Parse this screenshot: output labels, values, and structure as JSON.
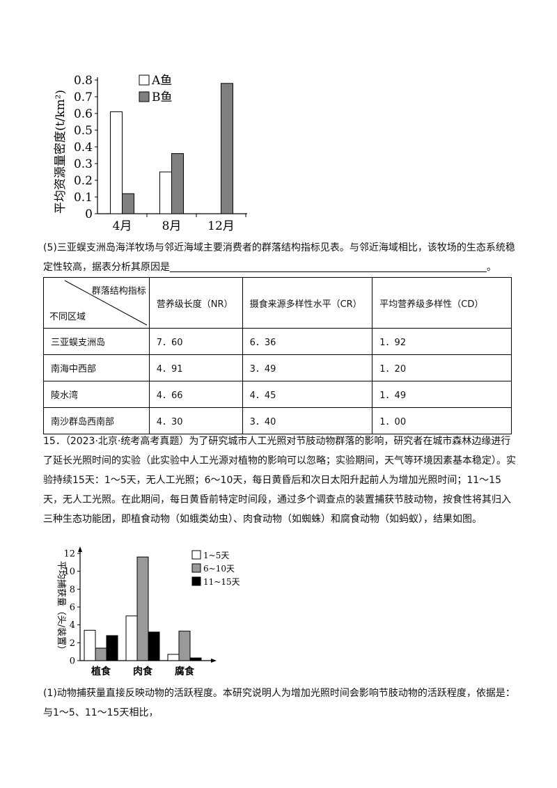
{
  "chart1": {
    "chart_data": {
      "type": "bar",
      "categories": [
        "4月",
        "8月",
        "12月"
      ],
      "series": [
        {
          "name": "A鱼",
          "values": [
            0.61,
            0.25,
            0
          ]
        },
        {
          "name": "B鱼",
          "values": [
            0.12,
            0.36,
            0.78
          ]
        }
      ],
      "ylabel": "平均资源量密度(t/km²)",
      "ylim": [
        0,
        0.8
      ],
      "yticks": [
        "0",
        "0.1",
        "0.2",
        "0.3",
        "0.4",
        "0.5",
        "0.6",
        "0.7",
        "0.8"
      ],
      "legend": "top-left",
      "grid": false
    },
    "colors": {
      "A鱼": "#ffffff",
      "B鱼": "#808080"
    }
  },
  "q5": {
    "text": "(5)三亚蜈支洲岛海洋牧场与邻近海域主要消费者的群落结构指标见表。与邻近海域相比，该牧场的生态系统稳定性较高，据表分析其原因是",
    "end": "。"
  },
  "table": {
    "corner_top": "群落结构指标",
    "corner_bottom": "不同区域",
    "headers": [
      "营养级长度（NR）",
      "摄食来源多样性水平（CR）",
      "平均营养级多样性（CD）"
    ],
    "rows": [
      [
        "三亚蜈支洲岛",
        "7．60",
        "6．36",
        "1．92"
      ],
      [
        "南海中西部",
        "4．91",
        "3．49",
        "1．20"
      ],
      [
        "陵水湾",
        "4．66",
        "4．45",
        "1．49"
      ],
      [
        "南沙群岛西南部",
        "4．30",
        "3．40",
        "1．00"
      ]
    ]
  },
  "q15": {
    "text": "15．（2023·北京·统考高考真题）为了研究城市人工光照对节肢动物群落的影响，研究者在城市森林边缘进行了延长光照时间的实验（此实验中人工光源对植物的影响可以忽略；实验期间，天气等环境因素基本稳定）。实验持续15天：1～5天，无人工光照；6～10天，每日黄昏后和次日太阳升起前人为增加光照时间；11～15天，无人工光照。在此期间，每日黄昏前特定时间段，通过多个调查点的装置捕获节肢动物，按食性将其归入三种生态功能团，即植食动物（如蛾类幼虫）、肉食动物（如蜘蛛）和腐食动物（如蚂蚁），结果如图。"
  },
  "chart2": {
    "chart_data": {
      "type": "bar",
      "categories": [
        "植食",
        "肉食",
        "腐食"
      ],
      "series": [
        {
          "name": "1~5天",
          "values": [
            3.4,
            5.0,
            0.7
          ]
        },
        {
          "name": "6~10天",
          "values": [
            1.4,
            11.6,
            3.3
          ]
        },
        {
          "name": "11~15天",
          "values": [
            2.8,
            3.2,
            0.3
          ]
        }
      ],
      "ylabel": "平均捕获量（头/装置）",
      "ylim": [
        0,
        12
      ],
      "yticks": [
        "0",
        "2",
        "4",
        "6",
        "8",
        "10",
        "12"
      ],
      "legend": "top-right",
      "grid": false
    },
    "colors": {
      "1~5天": "#ffffff",
      "6~10天": "#999999",
      "11~15天": "#000000"
    }
  },
  "q15_1": {
    "text": "(1)动物捕获量直接反映动物的活跃程度。本研究说明人为增加光照时间会影响节肢动物的活跃程度，依据是：与1～5、11～15天相比，"
  }
}
